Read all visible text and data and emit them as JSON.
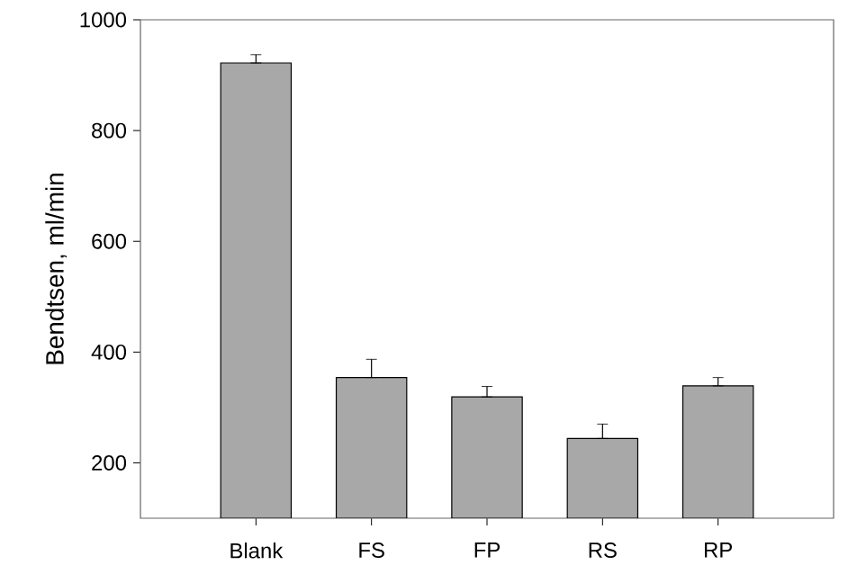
{
  "chart_data": {
    "type": "bar",
    "ylabel": "Bendtsen, ml/min",
    "categories": [
      "Blank",
      "FS",
      "FP",
      "RS",
      "RP"
    ],
    "values": [
      922,
      354,
      319,
      244,
      339
    ],
    "errors": [
      [
        922,
        937
      ],
      [
        354,
        387
      ],
      [
        319,
        338
      ],
      [
        244,
        270
      ],
      [
        339,
        354
      ]
    ],
    "color": "#a8a8a8",
    "ylim": [
      100,
      1000
    ],
    "yticks": [
      200,
      400,
      600,
      800,
      1000
    ]
  }
}
